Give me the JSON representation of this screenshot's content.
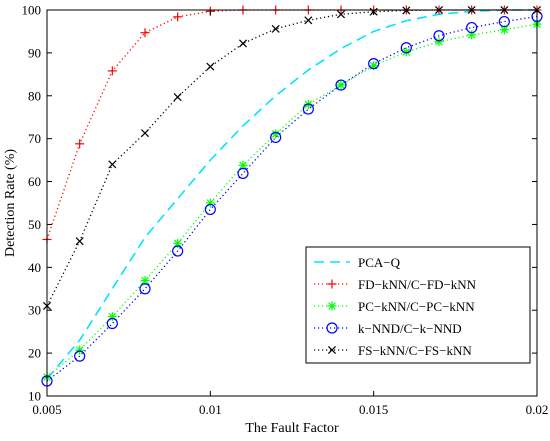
{
  "chart_data": {
    "type": "line",
    "title": "",
    "xlabel": "The Fault Factor",
    "ylabel": "Detection Rate (%)",
    "xlim": [
      0.005,
      0.02
    ],
    "ylim": [
      10,
      100
    ],
    "x_ticks": [
      "0.005",
      "0.01",
      "0.015",
      "0.02"
    ],
    "y_ticks": [
      "10",
      "20",
      "30",
      "40",
      "50",
      "60",
      "70",
      "80",
      "90",
      "100"
    ],
    "grid": false,
    "legend_position": "bottom-right",
    "x": [
      0.005,
      0.006,
      0.007,
      0.008,
      0.009,
      0.01,
      0.011,
      0.012,
      0.013,
      0.014,
      0.015,
      0.016,
      0.017,
      0.018,
      0.019,
      0.02
    ],
    "series": [
      {
        "name": "PCA−Q",
        "color": "#00e5ff",
        "line": "dashed",
        "marker": "none",
        "values": [
          14,
          23,
          35,
          47,
          56,
          65,
          73,
          80,
          86,
          91,
          95,
          97.5,
          99,
          99.7,
          100,
          100
        ]
      },
      {
        "name": "FD−kNN/C−FD−kNN",
        "color": "#ff0000",
        "line": "dotted",
        "marker": "plus",
        "values": [
          46.5,
          68.8,
          85.8,
          94.7,
          98.4,
          99.7,
          100,
          100,
          100,
          100,
          100,
          100,
          100,
          100,
          100,
          100
        ]
      },
      {
        "name": "PC−kNN/C−PC−kNN",
        "color": "#00ff00",
        "line": "dotted",
        "marker": "asterisk",
        "values": [
          14.4,
          20.7,
          28.5,
          36.9,
          45.6,
          55,
          63.8,
          71.1,
          78,
          82.5,
          87,
          90.2,
          92.6,
          94.2,
          95.4,
          96.7
        ]
      },
      {
        "name": "k−NND/C−k−NND",
        "color": "#0000ff",
        "line": "dotted",
        "marker": "circle",
        "values": [
          13.5,
          19.3,
          26.9,
          35,
          43.8,
          53.5,
          61.9,
          70.3,
          76.9,
          82.5,
          87.5,
          91.2,
          94,
          95.9,
          97.3,
          98.5
        ]
      },
      {
        "name": "FS−kNN/C−FS−kNN",
        "color": "#000000",
        "line": "dotted",
        "marker": "x",
        "values": [
          31,
          46.1,
          64,
          71.3,
          79.7,
          86.8,
          92.2,
          95.6,
          97.6,
          99,
          99.6,
          99.9,
          100,
          100,
          100,
          100
        ]
      }
    ]
  }
}
